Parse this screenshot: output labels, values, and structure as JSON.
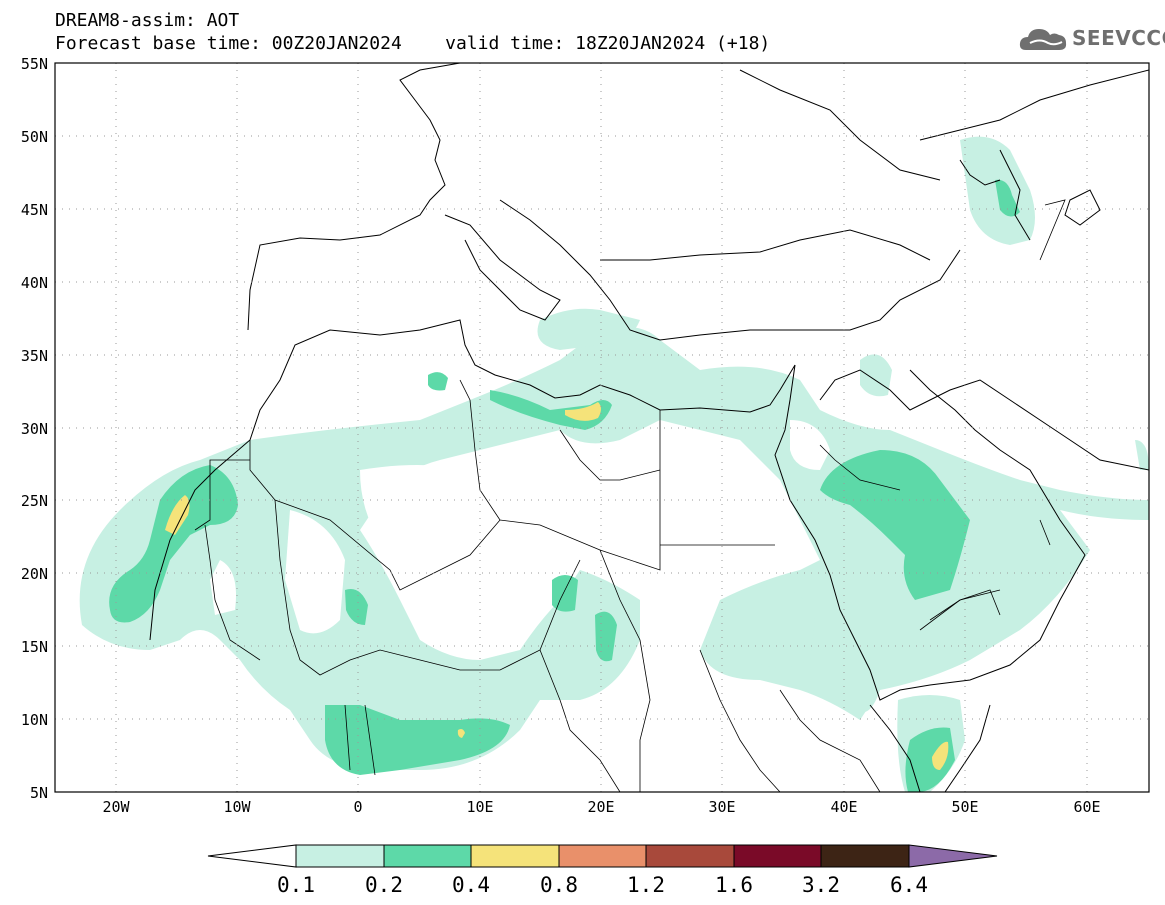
{
  "header": {
    "line1": "DREAM8-assim: AOT",
    "line2": "Forecast base time: 00Z20JAN2024    valid time: 18Z20JAN2024 (+18)"
  },
  "logo": {
    "text": "SEEVCCC",
    "icon": "cloud-icon"
  },
  "map": {
    "variable": "AOT",
    "lat_labels": [
      "55N",
      "50N",
      "45N",
      "40N",
      "35N",
      "30N",
      "25N",
      "20N",
      "15N",
      "10N",
      "5N"
    ],
    "lon_labels": [
      "20W",
      "10W",
      "0",
      "10E",
      "20E",
      "30E",
      "40E",
      "50E",
      "60E"
    ],
    "lat_range": [
      5,
      55
    ],
    "lon_range": [
      -25,
      65
    ]
  },
  "colorbar": {
    "levels": [
      "0.1",
      "0.2",
      "0.4",
      "0.8",
      "1.2",
      "1.6",
      "3.2",
      "6.4"
    ],
    "colors": [
      "#ffffff",
      "#c7f0e3",
      "#5dd9a8",
      "#f5e37a",
      "#e9906a",
      "#a8493b",
      "#7a0a28",
      "#3d2415",
      "#8c6aa8"
    ]
  }
}
